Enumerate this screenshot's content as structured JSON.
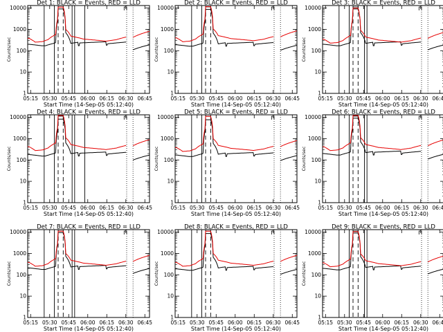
{
  "chart_data": [
    {
      "type": "line",
      "title": "Det 1: BLACK = Events, RED = LLD",
      "xlabel": "Start Time (14-Sep-05 05:12:40)",
      "ylabel": "Counts/sec",
      "xticks": [
        "05:15",
        "05:30",
        "05:45",
        "06:00",
        "06:15",
        "06:30",
        "06:45"
      ],
      "yticks": [
        "1",
        "10",
        "100",
        "1000",
        "10000"
      ],
      "ylim": [
        1,
        13000
      ],
      "xlim_minutes": [
        0,
        96
      ],
      "scale": "log",
      "solid_vlines_min": [
        13,
        21,
        35,
        37,
        45
      ],
      "dashed_vlines_min": [
        24,
        28
      ],
      "gap_min": [
        78,
        83
      ],
      "series": [
        {
          "name": "BLACK",
          "color": "#000000",
          "level": 1.0
        },
        {
          "name": "RED",
          "color": "#e60000",
          "level": 1.0
        }
      ]
    },
    {
      "type": "line",
      "title": "Det 2: BLACK = Events, RED = LLD",
      "xlabel": "Start Time (14-Sep-05 05:12:40)",
      "ylabel": "Counts/sec",
      "xticks": [
        "05:15",
        "05:30",
        "05:45",
        "06:00",
        "06:15",
        "06:30",
        "06:45"
      ],
      "yticks": [
        "1",
        "10",
        "100",
        "1000",
        "10000"
      ],
      "ylim": [
        1,
        13000
      ],
      "xlim_minutes": [
        0,
        96
      ],
      "scale": "log",
      "solid_vlines_min": [
        13,
        21
      ],
      "dashed_vlines_min": [
        24,
        28
      ],
      "gap_min": [
        78,
        83
      ],
      "series": [
        {
          "name": "BLACK",
          "color": "#000000",
          "level": 0.95
        },
        {
          "name": "RED",
          "color": "#e60000",
          "level": 1.05
        }
      ]
    },
    {
      "type": "line",
      "title": "Det 3: BLACK = Events, RED = LLD",
      "xlabel": "Start Time (14-Sep-05 05:12:40)",
      "ylabel": "Counts/sec",
      "xticks": [
        "05:15",
        "05:30",
        "05:45",
        "06:00",
        "06:15",
        "06:30",
        "06:45"
      ],
      "yticks": [
        "1",
        "10",
        "100",
        "1000",
        "10000"
      ],
      "ylim": [
        1,
        13000
      ],
      "xlim_minutes": [
        0,
        96
      ],
      "scale": "log",
      "solid_vlines_min": [
        13,
        21,
        33,
        35
      ],
      "dashed_vlines_min": [
        24,
        28
      ],
      "gap_min": [
        78,
        83
      ],
      "series": [
        {
          "name": "BLACK",
          "color": "#000000",
          "level": 1.0
        },
        {
          "name": "RED",
          "color": "#e60000",
          "level": 0.9
        }
      ]
    },
    {
      "type": "line",
      "title": "Det 4: BLACK = Events, RED = LLD",
      "xlabel": "Start Time (14-Sep-05 05:12:40)",
      "ylabel": "Counts/sec",
      "xticks": [
        "05:15",
        "05:30",
        "05:45",
        "06:00",
        "06:15",
        "06:30",
        "06:45"
      ],
      "yticks": [
        "1",
        "10",
        "100",
        "1000",
        "10000"
      ],
      "ylim": [
        1,
        13000
      ],
      "xlim_minutes": [
        0,
        96
      ],
      "scale": "log",
      "solid_vlines_min": [
        13,
        21,
        35,
        37,
        45
      ],
      "dashed_vlines_min": [
        24,
        28
      ],
      "gap_min": [
        78,
        83
      ],
      "series": [
        {
          "name": "BLACK",
          "color": "#000000",
          "level": 0.9
        },
        {
          "name": "RED",
          "color": "#e60000",
          "level": 1.1
        }
      ]
    },
    {
      "type": "line",
      "title": "Det 5: BLACK = Events, RED = LLD",
      "xlabel": "Start Time (14-Sep-05 05:12:40)",
      "ylabel": "Counts/sec",
      "xticks": [
        "05:15",
        "05:30",
        "05:45",
        "06:00",
        "06:15",
        "06:30",
        "06:45"
      ],
      "yticks": [
        "1",
        "10",
        "100",
        "1000",
        "10000"
      ],
      "ylim": [
        1,
        13000
      ],
      "xlim_minutes": [
        0,
        96
      ],
      "scale": "log",
      "solid_vlines_min": [
        13,
        21
      ],
      "dashed_vlines_min": [
        24,
        28
      ],
      "gap_min": [
        78,
        83
      ],
      "series": [
        {
          "name": "BLACK",
          "color": "#000000",
          "level": 0.85
        },
        {
          "name": "RED",
          "color": "#e60000",
          "level": 1.0
        }
      ]
    },
    {
      "type": "line",
      "title": "Det 6: BLACK = Events, RED = LLD",
      "xlabel": "Start Time (14-Sep-05 05:12:40)",
      "ylabel": "Counts/sec",
      "xticks": [
        "05:15",
        "05:30",
        "05:45",
        "06:00",
        "06:15",
        "06:30",
        "06:45"
      ],
      "yticks": [
        "1",
        "10",
        "100",
        "1000",
        "10000"
      ],
      "ylim": [
        1,
        13000
      ],
      "xlim_minutes": [
        0,
        96
      ],
      "scale": "log",
      "solid_vlines_min": [
        13,
        21,
        33,
        35
      ],
      "dashed_vlines_min": [
        24,
        28
      ],
      "gap_min": [
        78,
        83
      ],
      "series": [
        {
          "name": "BLACK",
          "color": "#000000",
          "level": 1.0
        },
        {
          "name": "RED",
          "color": "#e60000",
          "level": 1.1
        }
      ]
    },
    {
      "type": "line",
      "title": "Det 7: BLACK = Events, RED = LLD",
      "xlabel": "Start Time (14-Sep-05 05:12:40)",
      "ylabel": "Counts/sec",
      "xticks": [
        "05:15",
        "05:30",
        "05:45",
        "06:00",
        "06:15",
        "06:30",
        "06:45"
      ],
      "yticks": [
        "1",
        "10",
        "100",
        "1000",
        "10000"
      ],
      "ylim": [
        1,
        13000
      ],
      "xlim_minutes": [
        0,
        96
      ],
      "scale": "log",
      "solid_vlines_min": [
        13,
        21,
        35,
        37
      ],
      "dashed_vlines_min": [
        24,
        28
      ],
      "gap_min": [
        78,
        83
      ],
      "series": [
        {
          "name": "BLACK",
          "color": "#000000",
          "level": 1.05
        },
        {
          "name": "RED",
          "color": "#e60000",
          "level": 1.0
        }
      ]
    },
    {
      "type": "line",
      "title": "Det 8: BLACK = Events, RED = LLD",
      "xlabel": "Start Time (14-Sep-05 05:12:40)",
      "ylabel": "Counts/sec",
      "xticks": [
        "05:15",
        "05:30",
        "05:45",
        "06:00",
        "06:15",
        "06:30",
        "06:45"
      ],
      "yticks": [
        "1",
        "10",
        "100",
        "1000",
        "10000"
      ],
      "ylim": [
        1,
        13000
      ],
      "xlim_minutes": [
        0,
        96
      ],
      "scale": "log",
      "solid_vlines_min": [
        13,
        21
      ],
      "dashed_vlines_min": [
        24,
        28
      ],
      "gap_min": [
        78,
        83
      ],
      "series": [
        {
          "name": "BLACK",
          "color": "#000000",
          "level": 0.95
        },
        {
          "name": "RED",
          "color": "#e60000",
          "level": 1.0
        }
      ]
    },
    {
      "type": "line",
      "title": "Det 9: BLACK = Events, RED = LLD",
      "xlabel": "Start Time (14-Sep-05 05:12:40)",
      "ylabel": "Counts/sec",
      "xticks": [
        "05:15",
        "05:30",
        "05:45",
        "06:00",
        "06:15",
        "06:30",
        "06:45"
      ],
      "yticks": [
        "1",
        "10",
        "100",
        "1000",
        "10000"
      ],
      "ylim": [
        1,
        13000
      ],
      "xlim_minutes": [
        0,
        96
      ],
      "scale": "log",
      "solid_vlines_min": [
        13,
        21,
        33,
        35
      ],
      "dashed_vlines_min": [
        24,
        28
      ],
      "gap_min": [
        78,
        83
      ],
      "series": [
        {
          "name": "BLACK",
          "color": "#000000",
          "level": 1.0
        },
        {
          "name": "RED",
          "color": "#e60000",
          "level": 0.95
        }
      ]
    }
  ]
}
